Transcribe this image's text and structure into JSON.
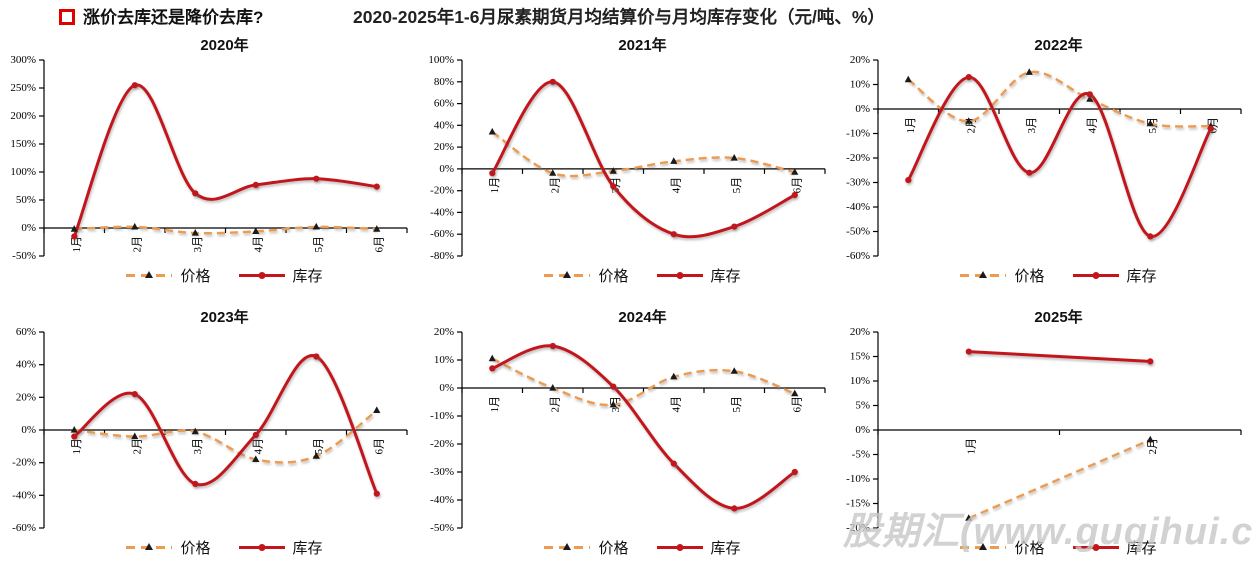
{
  "header": {
    "bullet_color": "#e00000",
    "question": "涨价去库还是降价去库?",
    "title": "2020-2025年1-6月尿素期货月均结算价与月均库存变化（元/吨、%）"
  },
  "legend": {
    "price": "价格",
    "inventory": "库存"
  },
  "colors": {
    "price_line": "#ED9B51",
    "price_marker": "#1A1A1A",
    "inventory_line": "#C3161C",
    "axis": "#000000",
    "watermark": "#C7C7C7"
  },
  "watermark": "股期汇(www.guqihui.cn)",
  "chart_data": [
    {
      "type": "line",
      "title": "2020年",
      "categories": [
        "1月",
        "2月",
        "3月",
        "4月",
        "5月",
        "6月"
      ],
      "ylim": [
        -50,
        300
      ],
      "ystep": 50,
      "grid": false,
      "legend_position": "bottom",
      "series": [
        {
          "name": "价格",
          "style": "dashed",
          "values": [
            -2,
            2,
            -9,
            -6,
            2,
            -2
          ]
        },
        {
          "name": "库存",
          "style": "solid",
          "values": [
            -15,
            255,
            62,
            77,
            88,
            74
          ]
        }
      ]
    },
    {
      "type": "line",
      "title": "2021年",
      "categories": [
        "1月",
        "2月",
        "3月",
        "4月",
        "5月",
        "6月"
      ],
      "ylim": [
        -80,
        100
      ],
      "ystep": 20,
      "grid": false,
      "legend_position": "bottom",
      "series": [
        {
          "name": "价格",
          "style": "dashed",
          "values": [
            34,
            -4,
            -2,
            7,
            10,
            -3
          ]
        },
        {
          "name": "库存",
          "style": "solid",
          "values": [
            -4,
            80,
            -16,
            -60,
            -53,
            -24
          ]
        }
      ]
    },
    {
      "type": "line",
      "title": "2022年",
      "categories": [
        "1月",
        "2月",
        "3月",
        "4月",
        "5月",
        "6月"
      ],
      "ylim": [
        -60,
        20
      ],
      "ystep": 10,
      "grid": false,
      "legend_position": "bottom",
      "series": [
        {
          "name": "价格",
          "style": "dashed",
          "values": [
            12,
            -5,
            15,
            4,
            -6,
            -7
          ]
        },
        {
          "name": "库存",
          "style": "solid",
          "values": [
            -29,
            13,
            -26,
            6,
            -52,
            -8
          ]
        }
      ]
    },
    {
      "type": "line",
      "title": "2023年",
      "categories": [
        "1月",
        "2月",
        "3月",
        "4月",
        "5月",
        "6月"
      ],
      "ylim": [
        -60,
        60
      ],
      "ystep": 20,
      "grid": false,
      "legend_position": "bottom",
      "series": [
        {
          "name": "价格",
          "style": "dashed",
          "values": [
            0,
            -4,
            -1,
            -18,
            -16,
            12
          ]
        },
        {
          "name": "库存",
          "style": "solid",
          "values": [
            -4,
            22,
            -33,
            -3,
            45,
            -39
          ]
        }
      ]
    },
    {
      "type": "line",
      "title": "2024年",
      "categories": [
        "1月",
        "2月",
        "3月",
        "4月",
        "5月",
        "6月"
      ],
      "ylim": [
        -50,
        20
      ],
      "ystep": 10,
      "grid": false,
      "legend_position": "bottom",
      "series": [
        {
          "name": "价格",
          "style": "dashed",
          "values": [
            10.5,
            0,
            -6,
            4,
            6,
            -2
          ]
        },
        {
          "name": "库存",
          "style": "solid",
          "values": [
            7,
            15,
            0.5,
            -27,
            -43,
            -30
          ]
        }
      ]
    },
    {
      "type": "line",
      "title": "2025年",
      "categories": [
        "1月",
        "2月"
      ],
      "ylim": [
        -20,
        20
      ],
      "ystep": 5,
      "grid": false,
      "legend_position": "bottom",
      "series": [
        {
          "name": "价格",
          "style": "dashed",
          "values": [
            -18,
            -2
          ]
        },
        {
          "name": "库存",
          "style": "solid",
          "values": [
            16,
            14
          ]
        }
      ]
    }
  ]
}
